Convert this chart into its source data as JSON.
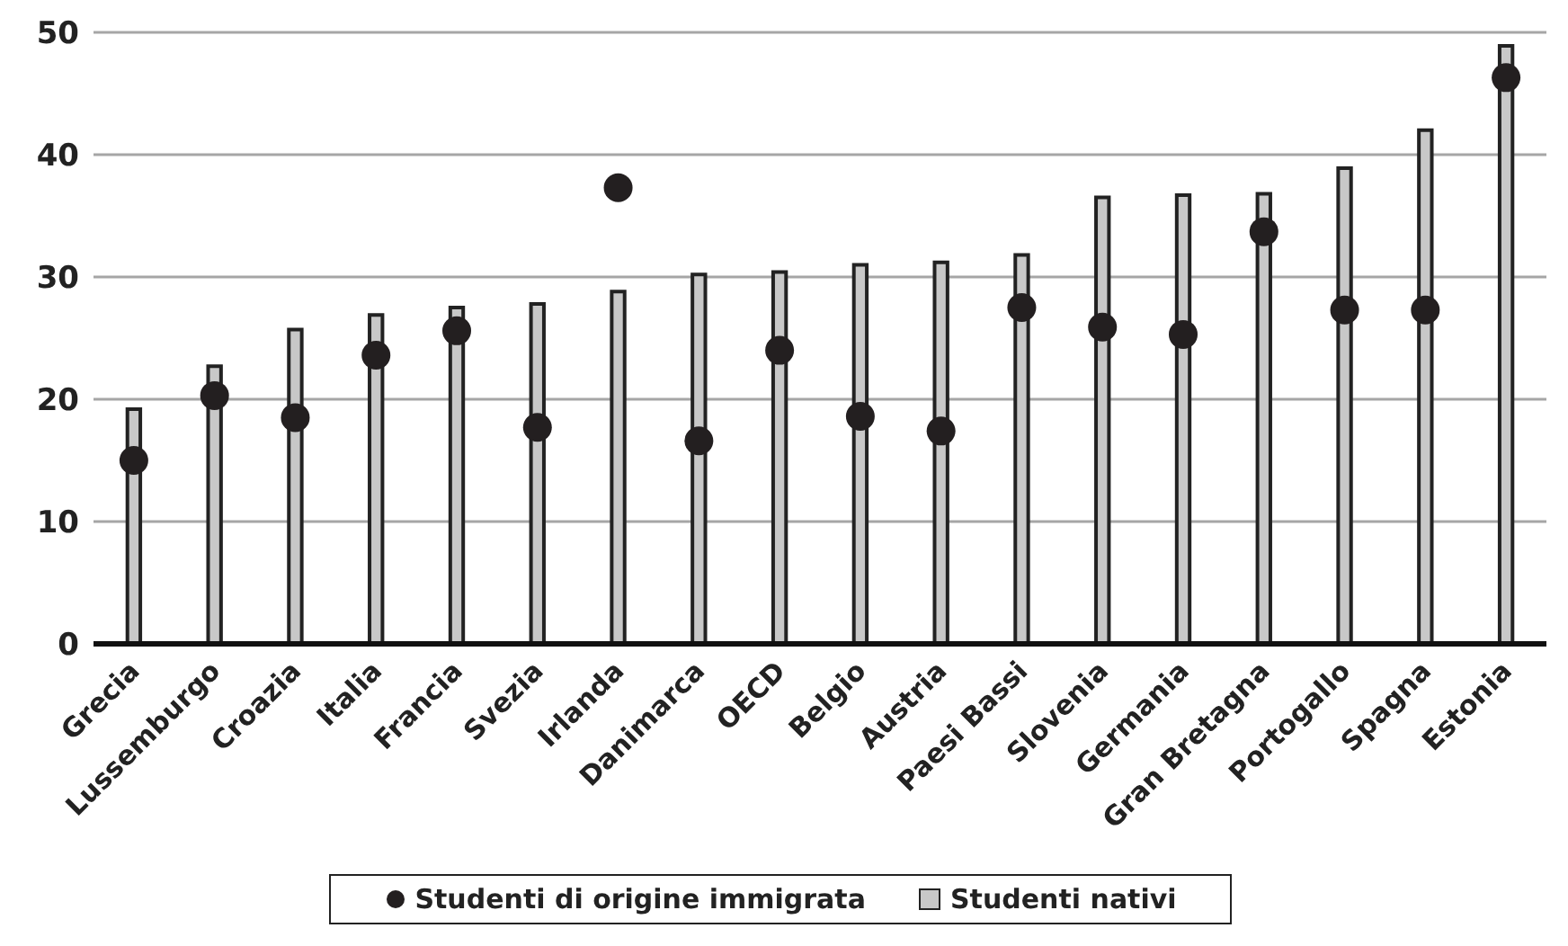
{
  "chart_data": {
    "type": "bar",
    "categories": [
      "Grecia",
      "Lussemburgo",
      "Croazia",
      "Italia",
      "Francia",
      "Svezia",
      "Irlanda",
      "Danimarca",
      "OECD",
      "Belgio",
      "Austria",
      "Paesi Bassi",
      "Slovenia",
      "Germania",
      "Gran Bretagna",
      "Portogallo",
      "Spagna",
      "Estonia"
    ],
    "series": [
      {
        "name": "Studenti nativi",
        "color": "#c8c8c8",
        "values": [
          19.2,
          22.7,
          25.7,
          26.9,
          27.5,
          27.8,
          28.8,
          30.2,
          30.4,
          31.0,
          31.2,
          31.8,
          36.5,
          36.7,
          36.8,
          38.9,
          42.0,
          48.9
        ]
      },
      {
        "name": "Studenti di origine immigrata",
        "type": "scatter",
        "color": "#231f20",
        "values": [
          15.0,
          20.3,
          18.5,
          23.6,
          25.6,
          17.7,
          37.3,
          16.6,
          24.0,
          18.6,
          17.4,
          27.5,
          25.9,
          25.3,
          33.7,
          27.3,
          27.3,
          46.3
        ]
      }
    ],
    "ylim": [
      0,
      50
    ],
    "yticks": [
      0,
      10,
      20,
      30,
      40,
      50
    ],
    "grid": "y",
    "legend": "bottom",
    "marker": "circle"
  }
}
